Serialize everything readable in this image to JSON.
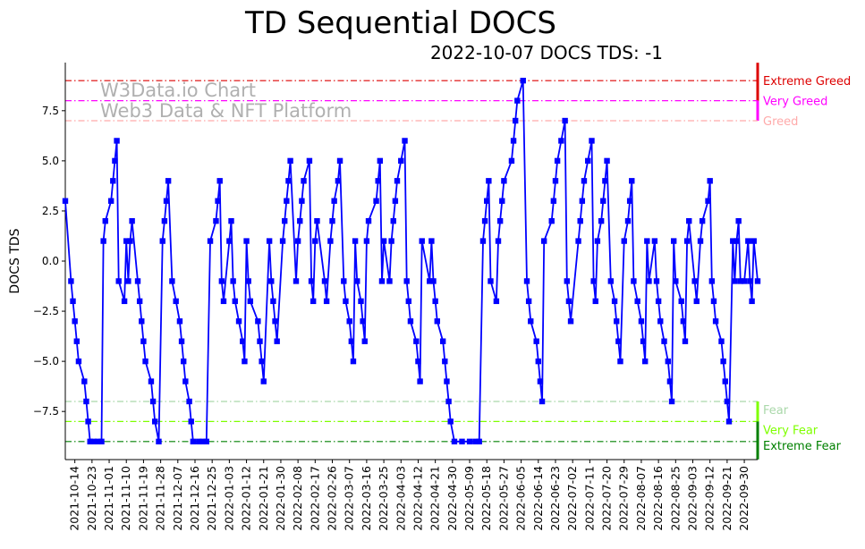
{
  "chart_data": {
    "type": "line",
    "title": "TD Sequential DOCS",
    "subtitle": "2022-10-07 DOCS TDS: -1",
    "ylabel": "DOCS TDS",
    "xlabel": "",
    "start_date": "2021-10-09",
    "xlim_days": [
      0,
      363
    ],
    "ylim": [
      -9.9,
      9.9
    ],
    "yticks": [
      -7.5,
      -5.0,
      -2.5,
      0.0,
      2.5,
      5.0,
      7.5
    ],
    "ytick_labels": [
      "−7.5",
      "−5.0",
      "−2.5",
      "0.0",
      "2.5",
      "5.0",
      "7.5"
    ],
    "xtick_labels": [
      "2021-10-14",
      "2021-10-23",
      "2021-11-01",
      "2021-11-10",
      "2021-11-19",
      "2021-11-28",
      "2021-12-07",
      "2021-12-16",
      "2021-12-25",
      "2022-01-03",
      "2022-01-12",
      "2022-01-21",
      "2022-01-30",
      "2022-02-08",
      "2022-02-17",
      "2022-02-26",
      "2022-03-07",
      "2022-03-16",
      "2022-03-25",
      "2022-04-03",
      "2022-04-12",
      "2022-04-21",
      "2022-04-30",
      "2022-05-09",
      "2022-05-18",
      "2022-05-27",
      "2022-06-05",
      "2022-06-14",
      "2022-06-23",
      "2022-07-02",
      "2022-07-11",
      "2022-07-20",
      "2022-07-29",
      "2022-08-07",
      "2022-08-16",
      "2022-08-25",
      "2022-09-03",
      "2022-09-12",
      "2022-09-21",
      "2022-09-30"
    ],
    "xtick_days_start": 5,
    "xtick_step_days": 9,
    "watermark": [
      "W3Data.io Chart",
      "Web3 Data & NFT Platform"
    ],
    "levels": [
      {
        "name": "Extreme Greed",
        "value": 9,
        "color": "#dd0000"
      },
      {
        "name": "Very Greed",
        "value": 8,
        "color": "#ff00ff"
      },
      {
        "name": "Greed",
        "value": 7,
        "color": "#ffaaaa"
      },
      {
        "name": "Fear",
        "value": -7,
        "color": "#aad8aa"
      },
      {
        "name": "Very Fear",
        "value": -8,
        "color": "#7fff00"
      },
      {
        "name": "Extreme Fear",
        "value": -9,
        "color": "#008000"
      }
    ],
    "series": [
      {
        "name": "DOCS TDS",
        "color": "#0000ff",
        "points": [
          [
            0,
            3
          ],
          [
            3,
            -1
          ],
          [
            4,
            -2
          ],
          [
            5,
            -3
          ],
          [
            6,
            -4
          ],
          [
            7,
            -5
          ],
          [
            10,
            -6
          ],
          [
            11,
            -7
          ],
          [
            12,
            -8
          ],
          [
            13,
            -9
          ],
          [
            15,
            -9
          ],
          [
            17,
            -9
          ],
          [
            19,
            -9
          ],
          [
            20,
            1
          ],
          [
            21,
            2
          ],
          [
            24,
            3
          ],
          [
            25,
            4
          ],
          [
            26,
            5
          ],
          [
            27,
            6
          ],
          [
            28,
            -1
          ],
          [
            31,
            -2
          ],
          [
            32,
            1
          ],
          [
            33,
            -1
          ],
          [
            34,
            1
          ],
          [
            35,
            2
          ],
          [
            38,
            -1
          ],
          [
            39,
            -2
          ],
          [
            40,
            -3
          ],
          [
            41,
            -4
          ],
          [
            42,
            -5
          ],
          [
            45,
            -6
          ],
          [
            46,
            -7
          ],
          [
            47,
            -8
          ],
          [
            49,
            -9
          ],
          [
            51,
            1
          ],
          [
            52,
            2
          ],
          [
            53,
            3
          ],
          [
            54,
            4
          ],
          [
            56,
            -1
          ],
          [
            58,
            -2
          ],
          [
            60,
            -3
          ],
          [
            61,
            -4
          ],
          [
            62,
            -5
          ],
          [
            63,
            -6
          ],
          [
            65,
            -7
          ],
          [
            66,
            -8
          ],
          [
            67,
            -9
          ],
          [
            70,
            -9
          ],
          [
            72,
            -9
          ],
          [
            74,
            -9
          ],
          [
            76,
            1
          ],
          [
            79,
            2
          ],
          [
            80,
            3
          ],
          [
            81,
            4
          ],
          [
            82,
            -1
          ],
          [
            83,
            -2
          ],
          [
            86,
            1
          ],
          [
            87,
            2
          ],
          [
            88,
            -1
          ],
          [
            89,
            -2
          ],
          [
            91,
            -3
          ],
          [
            93,
            -4
          ],
          [
            94,
            -5
          ],
          [
            95,
            1
          ],
          [
            96,
            -1
          ],
          [
            97,
            -2
          ],
          [
            101,
            -3
          ],
          [
            102,
            -4
          ],
          [
            103,
            -5
          ],
          [
            104,
            -6
          ],
          [
            107,
            1
          ],
          [
            108,
            -1
          ],
          [
            109,
            -2
          ],
          [
            110,
            -3
          ],
          [
            111,
            -4
          ],
          [
            114,
            1
          ],
          [
            115,
            2
          ],
          [
            116,
            3
          ],
          [
            117,
            4
          ],
          [
            118,
            5
          ],
          [
            121,
            -1
          ],
          [
            122,
            1
          ],
          [
            123,
            2
          ],
          [
            124,
            3
          ],
          [
            125,
            4
          ],
          [
            128,
            5
          ],
          [
            129,
            -1
          ],
          [
            130,
            -2
          ],
          [
            131,
            1
          ],
          [
            132,
            2
          ],
          [
            136,
            -1
          ],
          [
            137,
            -2
          ],
          [
            139,
            1
          ],
          [
            140,
            2
          ],
          [
            141,
            3
          ],
          [
            143,
            4
          ],
          [
            144,
            5
          ],
          [
            146,
            -1
          ],
          [
            147,
            -2
          ],
          [
            149,
            -3
          ],
          [
            150,
            -4
          ],
          [
            151,
            -5
          ],
          [
            152,
            1
          ],
          [
            153,
            -1
          ],
          [
            155,
            -2
          ],
          [
            156,
            -3
          ],
          [
            157,
            -4
          ],
          [
            158,
            1
          ],
          [
            159,
            2
          ],
          [
            163,
            3
          ],
          [
            164,
            4
          ],
          [
            165,
            5
          ],
          [
            166,
            -1
          ],
          [
            167,
            1
          ],
          [
            170,
            -1
          ],
          [
            171,
            1
          ],
          [
            172,
            2
          ],
          [
            173,
            3
          ],
          [
            174,
            4
          ],
          [
            176,
            5
          ],
          [
            178,
            6
          ],
          [
            179,
            -1
          ],
          [
            180,
            -2
          ],
          [
            181,
            -3
          ],
          [
            184,
            -4
          ],
          [
            185,
            -5
          ],
          [
            186,
            -6
          ],
          [
            187,
            1
          ],
          [
            191,
            -1
          ],
          [
            192,
            1
          ],
          [
            193,
            -1
          ],
          [
            194,
            -2
          ],
          [
            195,
            -3
          ],
          [
            198,
            -4
          ],
          [
            199,
            -5
          ],
          [
            200,
            -6
          ],
          [
            201,
            -7
          ],
          [
            202,
            -8
          ],
          [
            204,
            -9
          ],
          [
            208,
            -9
          ],
          [
            212,
            -9
          ],
          [
            215,
            -9
          ],
          [
            217,
            -9
          ],
          [
            219,
            1
          ],
          [
            220,
            2
          ],
          [
            221,
            3
          ],
          [
            222,
            4
          ],
          [
            223,
            -1
          ],
          [
            226,
            -2
          ],
          [
            227,
            1
          ],
          [
            228,
            2
          ],
          [
            229,
            3
          ],
          [
            230,
            4
          ],
          [
            234,
            5
          ],
          [
            235,
            6
          ],
          [
            236,
            7
          ],
          [
            237,
            8
          ],
          [
            240,
            9
          ],
          [
            242,
            -1
          ],
          [
            243,
            -2
          ],
          [
            244,
            -3
          ],
          [
            247,
            -4
          ],
          [
            248,
            -5
          ],
          [
            249,
            -6
          ],
          [
            250,
            -7
          ],
          [
            251,
            1
          ],
          [
            255,
            2
          ],
          [
            256,
            3
          ],
          [
            257,
            4
          ],
          [
            258,
            5
          ],
          [
            260,
            6
          ],
          [
            262,
            7
          ],
          [
            263,
            -1
          ],
          [
            264,
            -2
          ],
          [
            265,
            -3
          ],
          [
            269,
            1
          ],
          [
            270,
            2
          ],
          [
            271,
            3
          ],
          [
            272,
            4
          ],
          [
            274,
            5
          ],
          [
            276,
            6
          ],
          [
            277,
            -1
          ],
          [
            278,
            -2
          ],
          [
            279,
            1
          ],
          [
            281,
            2
          ],
          [
            282,
            3
          ],
          [
            283,
            4
          ],
          [
            284,
            5
          ],
          [
            286,
            -1
          ],
          [
            288,
            -2
          ],
          [
            289,
            -3
          ],
          [
            290,
            -4
          ],
          [
            291,
            -5
          ],
          [
            293,
            1
          ],
          [
            295,
            2
          ],
          [
            296,
            3
          ],
          [
            297,
            4
          ],
          [
            298,
            -1
          ],
          [
            300,
            -2
          ],
          [
            302,
            -3
          ],
          [
            303,
            -4
          ],
          [
            304,
            -5
          ],
          [
            305,
            1
          ],
          [
            306,
            -1
          ],
          [
            309,
            1
          ],
          [
            310,
            -1
          ],
          [
            311,
            -2
          ],
          [
            312,
            -3
          ],
          [
            314,
            -4
          ],
          [
            316,
            -5
          ],
          [
            317,
            -6
          ],
          [
            318,
            -7
          ],
          [
            319,
            1
          ],
          [
            320,
            -1
          ],
          [
            323,
            -2
          ],
          [
            324,
            -3
          ],
          [
            325,
            -4
          ],
          [
            326,
            1
          ],
          [
            327,
            2
          ],
          [
            330,
            -1
          ],
          [
            331,
            -2
          ],
          [
            333,
            1
          ],
          [
            334,
            2
          ],
          [
            337,
            3
          ],
          [
            338,
            4
          ],
          [
            339,
            -1
          ],
          [
            340,
            -2
          ],
          [
            341,
            -3
          ],
          [
            344,
            -4
          ],
          [
            345,
            -5
          ],
          [
            346,
            -6
          ],
          [
            347,
            -7
          ],
          [
            348,
            -8
          ],
          [
            350,
            1
          ],
          [
            351,
            -1
          ],
          [
            352,
            1
          ],
          [
            353,
            2
          ],
          [
            354,
            -1
          ],
          [
            356,
            -1
          ],
          [
            358,
            1
          ],
          [
            359,
            -1
          ],
          [
            360,
            -2
          ],
          [
            361,
            1
          ],
          [
            363,
            -1
          ]
        ]
      }
    ]
  }
}
